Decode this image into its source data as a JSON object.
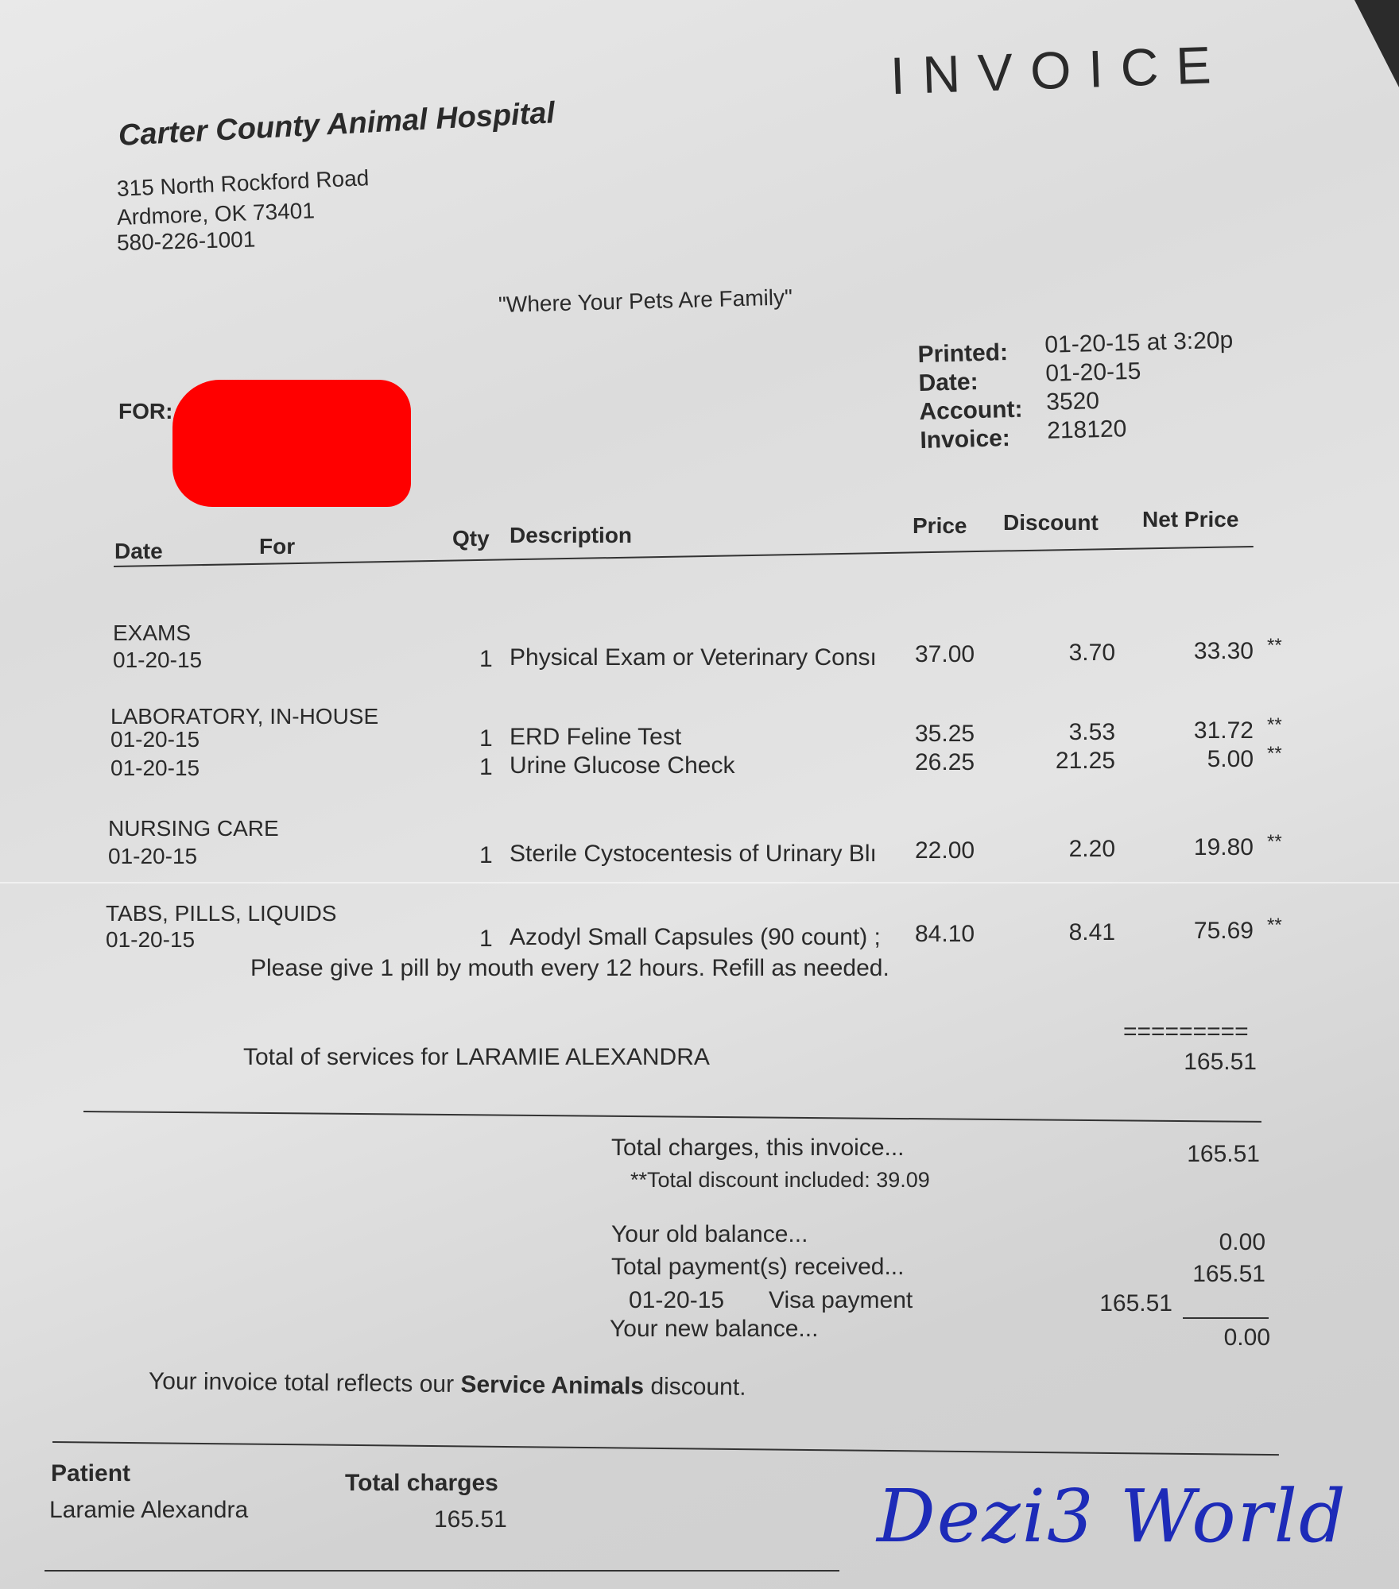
{
  "header": {
    "title": "INVOICE",
    "hospital": "Carter County Animal Hospital",
    "address1": "315 North Rockford Road",
    "address2": "Ardmore, OK  73401",
    "phone": "580-226-1001",
    "tagline": "\"Where Your Pets Are Family\""
  },
  "info": {
    "printed_label": "Printed:",
    "printed": "01-20-15 at 3:20p",
    "date_label": "Date:",
    "date": "01-20-15",
    "account_label": "Account:",
    "account": "3520",
    "invoice_label": "Invoice:",
    "invoice": "218120"
  },
  "for_label": "FOR:",
  "columns": {
    "date": "Date",
    "for": "For",
    "qty": "Qty",
    "description": "Description",
    "price": "Price",
    "discount": "Discount",
    "net": "Net Price"
  },
  "sections": [
    {
      "title": "EXAMS",
      "items": [
        {
          "date": "01-20-15",
          "qty": "1",
          "description": "Physical Exam or Veterinary Consı",
          "price": "37.00",
          "discount": "3.70",
          "net": "33.30",
          "flag": "**"
        }
      ]
    },
    {
      "title": "LABORATORY, IN-HOUSE",
      "items": [
        {
          "date": "01-20-15",
          "qty": "1",
          "description": "ERD Feline Test",
          "price": "35.25",
          "discount": "3.53",
          "net": "31.72",
          "flag": "**"
        },
        {
          "date": "01-20-15",
          "qty": "1",
          "description": "Urine Glucose Check",
          "price": "26.25",
          "discount": "21.25",
          "net": "5.00",
          "flag": "**"
        }
      ]
    },
    {
      "title": "NURSING CARE",
      "items": [
        {
          "date": "01-20-15",
          "qty": "1",
          "description": "Sterile Cystocentesis of Urinary Blı",
          "price": "22.00",
          "discount": "2.20",
          "net": "19.80",
          "flag": "**"
        }
      ]
    },
    {
      "title": "TABS, PILLS, LIQUIDS",
      "items": [
        {
          "date": "01-20-15",
          "qty": "1",
          "description": "Azodyl Small Capsules (90 count) ;",
          "price": "84.10",
          "discount": "8.41",
          "net": "75.69",
          "flag": "**"
        }
      ],
      "note": "Please give 1 pill by mouth every 12 hours. Refill as needed."
    }
  ],
  "services_total": {
    "rule": "=========",
    "label": "Total of services for LARAMIE ALEXANDRA",
    "value": "165.51"
  },
  "summary": {
    "charges_label": "Total charges, this invoice...",
    "charges": "165.51",
    "discount_note": "**Total discount included:  39.09",
    "old_label": "Your old balance...",
    "old": "0.00",
    "payments_label": "Total payment(s) received...",
    "payments": "165.51",
    "payment_date": "01-20-15",
    "payment_method": "Visa payment",
    "payment_amount": "165.51",
    "new_label": "Your new balance...",
    "new": "0.00"
  },
  "note": {
    "pre": "Your invoice total reflects our ",
    "bold": "Service Animals",
    "post": " discount."
  },
  "footer": {
    "patient_label": "Patient",
    "patient": "Laramie Alexandra",
    "charges_label": "Total charges",
    "charges": "165.51"
  },
  "watermark": "Dezi3 World",
  "colors": {
    "redaction": "#ff0000",
    "watermark": "#1d2bb8"
  }
}
